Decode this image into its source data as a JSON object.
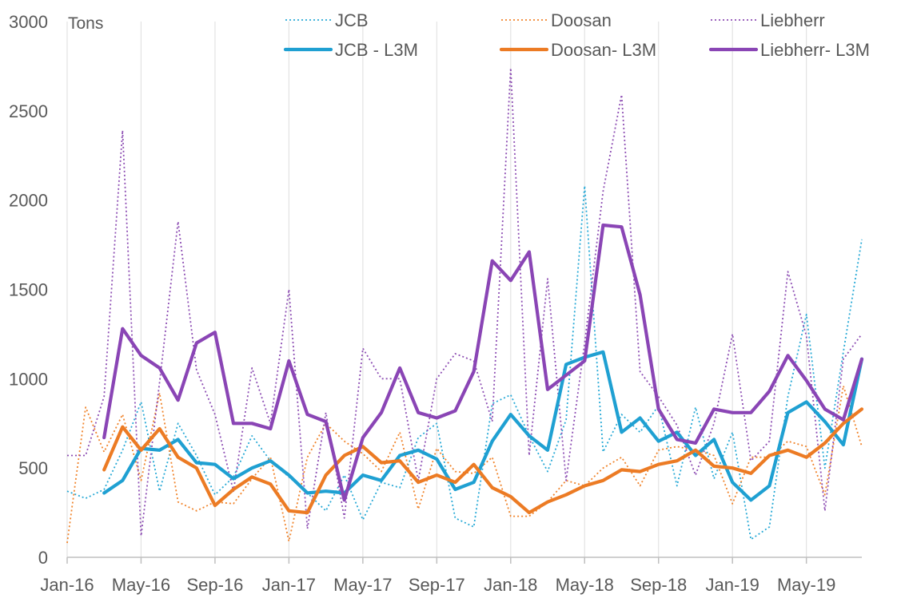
{
  "chart_data": {
    "type": "line",
    "unit_label": "Tons",
    "ylim": [
      0,
      3000
    ],
    "y_ticks": [
      0,
      500,
      1000,
      1500,
      2000,
      2500,
      3000
    ],
    "x_tick_labels": [
      "Jan-16",
      "May-16",
      "Sep-16",
      "Jan-17",
      "May-17",
      "Sep-17",
      "Jan-18",
      "May-18",
      "Sep-18",
      "Jan-19",
      "May-19"
    ],
    "x_tick_index": [
      0,
      4,
      8,
      12,
      16,
      20,
      24,
      28,
      32,
      36,
      40
    ],
    "n_points": 44,
    "grid": true,
    "legend_position": "top",
    "series": [
      {
        "name": "JCB",
        "color": "#27A9D6",
        "style": "dotted",
        "values": [
          370,
          330,
          380,
          600,
          870,
          370,
          750,
          570,
          350,
          450,
          680,
          540,
          450,
          360,
          260,
          460,
          210,
          420,
          390,
          670,
          750,
          220,
          170,
          860,
          910,
          680,
          480,
          770,
          2080,
          590,
          800,
          700,
          850,
          400,
          840,
          440,
          700,
          100,
          170,
          900,
          1360,
          500,
          1150,
          1780
        ]
      },
      {
        "name": "Doosan",
        "color": "#F0832A",
        "style": "dotted",
        "values": [
          80,
          840,
          590,
          800,
          430,
          920,
          310,
          260,
          310,
          300,
          440,
          560,
          90,
          560,
          750,
          650,
          580,
          480,
          700,
          270,
          610,
          480,
          470,
          560,
          230,
          230,
          310,
          430,
          400,
          500,
          560,
          400,
          600,
          620,
          600,
          570,
          300,
          560,
          560,
          650,
          620,
          350,
          960,
          620
        ]
      },
      {
        "name": "Liebherr",
        "color": "#8E4FB4",
        "style": "dotted",
        "values": [
          570,
          570,
          900,
          2390,
          120,
          980,
          1880,
          1050,
          800,
          370,
          1060,
          750,
          1500,
          160,
          810,
          220,
          1170,
          1000,
          1000,
          430,
          1000,
          1140,
          1100,
          760,
          2740,
          570,
          1560,
          430,
          1200,
          2050,
          2590,
          1040,
          900,
          740,
          460,
          750,
          1250,
          540,
          650,
          1600,
          1240,
          260,
          1110,
          1250
        ]
      },
      {
        "name": "JCB - L3M",
        "color": "#1FA0D2",
        "style": "solid",
        "values": [
          null,
          null,
          360,
          430,
          610,
          600,
          660,
          530,
          520,
          440,
          500,
          540,
          460,
          360,
          370,
          360,
          460,
          430,
          570,
          600,
          550,
          380,
          420,
          650,
          800,
          680,
          600,
          1080,
          1120,
          1150,
          700,
          780,
          650,
          700,
          570,
          660,
          420,
          320,
          400,
          810,
          870,
          760,
          630,
          1110
        ]
      },
      {
        "name": "Doosan- L3M",
        "color": "#EC7B24",
        "style": "solid",
        "values": [
          null,
          null,
          490,
          730,
          600,
          720,
          560,
          500,
          290,
          380,
          450,
          410,
          260,
          250,
          460,
          570,
          620,
          530,
          540,
          420,
          460,
          420,
          520,
          390,
          340,
          250,
          310,
          350,
          400,
          430,
          490,
          480,
          520,
          540,
          600,
          510,
          500,
          470,
          570,
          600,
          560,
          640,
          750,
          830
        ]
      },
      {
        "name": "Liebherr- L3M",
        "color": "#8A45B5",
        "style": "solid",
        "values": [
          null,
          null,
          670,
          1280,
          1130,
          1060,
          880,
          1200,
          1260,
          750,
          750,
          720,
          1100,
          800,
          760,
          320,
          670,
          810,
          1060,
          810,
          780,
          820,
          1040,
          1660,
          1550,
          1710,
          940,
          1020,
          1100,
          1860,
          1850,
          1470,
          830,
          660,
          640,
          830,
          810,
          810,
          930,
          1130,
          990,
          830,
          770,
          1110
        ]
      }
    ]
  }
}
